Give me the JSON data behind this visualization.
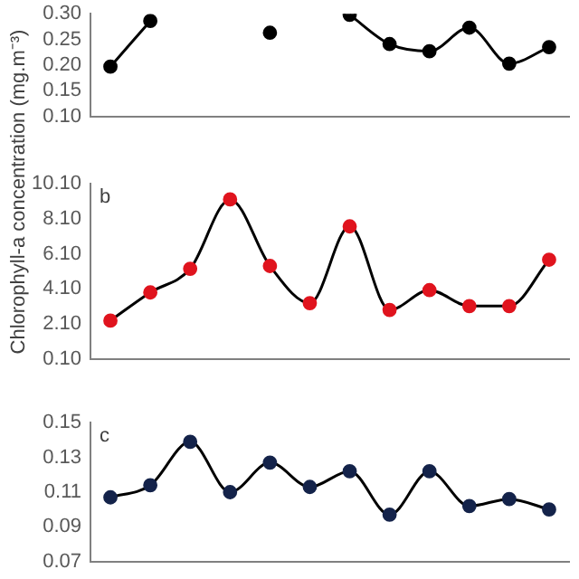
{
  "chart_data": [
    {
      "type": "line",
      "ylabel": "Chlorophyll-a concentration (mg.m⁻³)",
      "categories": [
        null,
        null,
        null,
        null,
        null,
        null,
        null,
        null,
        null,
        null,
        null,
        null
      ],
      "series": [
        {
          "color": "#000000",
          "values": [
            0.197,
            0.286,
            null,
            null,
            0.263,
            null,
            0.298,
            0.241,
            0.227,
            0.273,
            0.203,
            0.235
          ]
        }
      ],
      "ylim": [
        0.1,
        0.3
      ],
      "yticks": [
        {
          "value": 0.1,
          "label": "0.10"
        },
        {
          "value": 0.15,
          "label": "0.15"
        },
        {
          "value": 0.2,
          "label": "0.20"
        },
        {
          "value": 0.25,
          "label": "0.25"
        },
        {
          "value": 0.3,
          "label": "0.30"
        }
      ],
      "tick_labels": "y",
      "grid": false,
      "legend": false,
      "marker": "circle",
      "line_style": "solid"
    },
    {
      "type": "line",
      "annotations": [
        "b"
      ],
      "categories": [
        null,
        null,
        null,
        null,
        null,
        null,
        null,
        null,
        null,
        null,
        null,
        null
      ],
      "series": [
        {
          "color": "#e0141e",
          "values": [
            2.29,
            3.9,
            5.25,
            9.21,
            5.41,
            3.29,
            7.67,
            2.9,
            4.03,
            3.12,
            3.12,
            5.77
          ]
        }
      ],
      "ylim": [
        0.1,
        10.1
      ],
      "yticks": [
        {
          "value": 0.1,
          "label": "0.10"
        },
        {
          "value": 2.1,
          "label": "2.10"
        },
        {
          "value": 4.1,
          "label": "4.10"
        },
        {
          "value": 6.1,
          "label": "6.10"
        },
        {
          "value": 8.1,
          "label": "8.10"
        },
        {
          "value": 10.1,
          "label": "10.10"
        }
      ],
      "tick_labels": "y",
      "grid": false,
      "legend": false,
      "marker": "circle",
      "line_style": "solid"
    },
    {
      "type": "line",
      "annotations": [
        "c"
      ],
      "categories": [
        null,
        null,
        null,
        null,
        null,
        null,
        null,
        null,
        null,
        null,
        null,
        null
      ],
      "series": [
        {
          "color": "#14234a",
          "values": [
            0.107,
            0.114,
            0.139,
            0.11,
            0.127,
            0.113,
            0.122,
            0.097,
            0.122,
            0.102,
            0.106,
            0.1
          ]
        }
      ],
      "ylim": [
        0.07,
        0.15
      ],
      "yticks": [
        {
          "value": 0.07,
          "label": "0.07"
        },
        {
          "value": 0.09,
          "label": "0.09"
        },
        {
          "value": 0.11,
          "label": "0.11"
        },
        {
          "value": 0.13,
          "label": "0.13"
        },
        {
          "value": 0.15,
          "label": "0.15"
        }
      ],
      "tick_labels": "y",
      "grid": false,
      "legend": false,
      "marker": "circle",
      "line_style": "solid"
    }
  ]
}
